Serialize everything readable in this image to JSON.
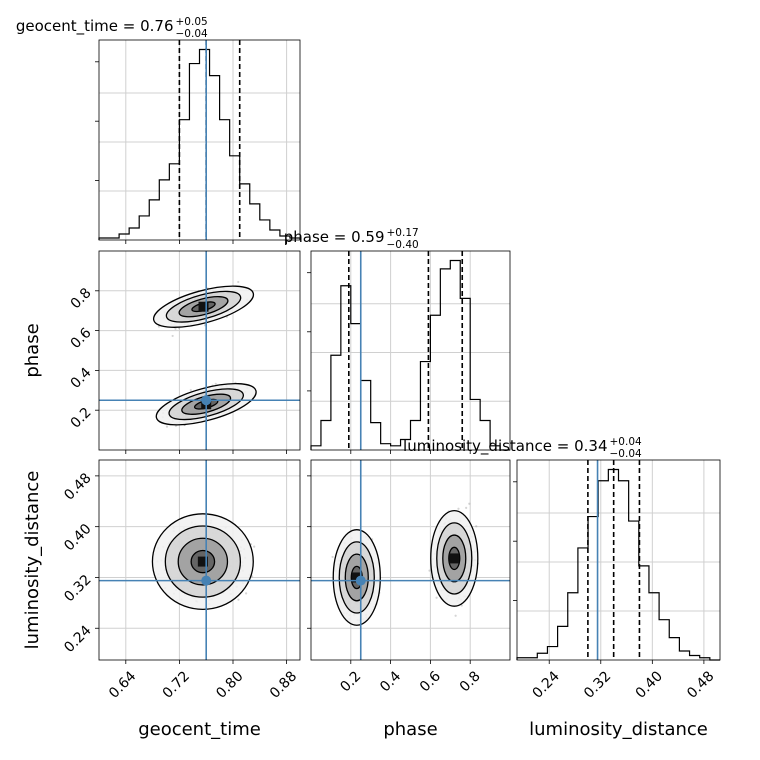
{
  "chart_data": {
    "type": "corner",
    "parameters": [
      "geocent_time",
      "phase",
      "luminosity_distance"
    ],
    "truths": {
      "geocent_time": 0.76,
      "phase": 0.25,
      "luminosity_distance": 0.315
    },
    "truth_color": "#4682b4",
    "ranges": {
      "geocent_time": [
        0.6,
        0.9
      ],
      "phase": [
        0.0,
        1.0
      ],
      "luminosity_distance": [
        0.19,
        0.505
      ]
    },
    "ticks": {
      "geocent_time": [
        "0.64",
        "0.72",
        "0.80",
        "0.88"
      ],
      "phase": [
        "0.2",
        "0.4",
        "0.6",
        "0.8"
      ],
      "luminosity_distance": [
        "0.24",
        "0.32",
        "0.40",
        "0.48"
      ]
    },
    "titles": {
      "geocent_time": {
        "prefix": "geocent_time = 0.76",
        "plus": "+0.05",
        "minus": "−0.04"
      },
      "phase": {
        "prefix": "phase = 0.59",
        "plus": "+0.17",
        "minus": "−0.40"
      },
      "luminosity_distance": {
        "prefix": "luminosity_distance = 0.34",
        "plus": "+0.04",
        "minus": "−0.04"
      }
    },
    "quantiles": {
      "geocent_time": [
        0.72,
        0.76,
        0.81
      ],
      "phase": [
        0.19,
        0.59,
        0.76
      ],
      "luminosity_distance": [
        0.3,
        0.34,
        0.38
      ]
    },
    "histograms": {
      "geocent_time": {
        "bin_edges": [
          0.6,
          0.615,
          0.63,
          0.645,
          0.66,
          0.675,
          0.69,
          0.705,
          0.72,
          0.735,
          0.75,
          0.765,
          0.78,
          0.795,
          0.81,
          0.825,
          0.84,
          0.855,
          0.87,
          0.885,
          0.9
        ],
        "counts": [
          1,
          1,
          3,
          6,
          12,
          20,
          30,
          38,
          60,
          88,
          95,
          82,
          60,
          42,
          28,
          18,
          10,
          5,
          2,
          1
        ]
      },
      "phase": {
        "bin_edges": [
          0.0,
          0.05,
          0.1,
          0.15,
          0.2,
          0.25,
          0.3,
          0.35,
          0.4,
          0.45,
          0.5,
          0.55,
          0.6,
          0.65,
          0.7,
          0.75,
          0.8,
          0.85,
          0.9,
          0.95,
          1.0
        ],
        "counts": [
          2,
          14,
          45,
          78,
          60,
          33,
          13,
          3,
          2,
          5,
          14,
          42,
          64,
          86,
          90,
          72,
          24,
          14,
          2,
          0
        ]
      },
      "luminosity_distance": {
        "bin_edges": [
          0.19,
          0.20575,
          0.2215,
          0.23725,
          0.253,
          0.26875,
          0.2845,
          0.30025,
          0.316,
          0.33175,
          0.3475,
          0.36325,
          0.379,
          0.39475,
          0.4105,
          0.42625,
          0.442,
          0.45775,
          0.4735,
          0.48925,
          0.505
        ],
        "counts": [
          1,
          1,
          3,
          6,
          15,
          30,
          50,
          64,
          80,
          85,
          80,
          62,
          42,
          30,
          18,
          10,
          4,
          2,
          1,
          0
        ]
      }
    },
    "modes": {
      "geocent_time_vs_phase": [
        {
          "center": [
            0.756,
            0.72
          ],
          "spread": [
            0.03,
            0.05
          ],
          "rho": 0.55
        },
        {
          "center": [
            0.76,
            0.23
          ],
          "spread": [
            0.03,
            0.05
          ],
          "rho": 0.55
        }
      ],
      "geocent_time_vs_luminosity_distance": [
        {
          "center": [
            0.755,
            0.345
          ],
          "spread": [
            0.035,
            0.035
          ],
          "rho": 0.0
        }
      ],
      "phase_vs_luminosity_distance": [
        {
          "center": [
            0.23,
            0.32
          ],
          "spread": [
            0.055,
            0.035
          ],
          "rho": 0.0
        },
        {
          "center": [
            0.72,
            0.35
          ],
          "spread": [
            0.055,
            0.035
          ],
          "rho": 0.0
        }
      ]
    }
  }
}
